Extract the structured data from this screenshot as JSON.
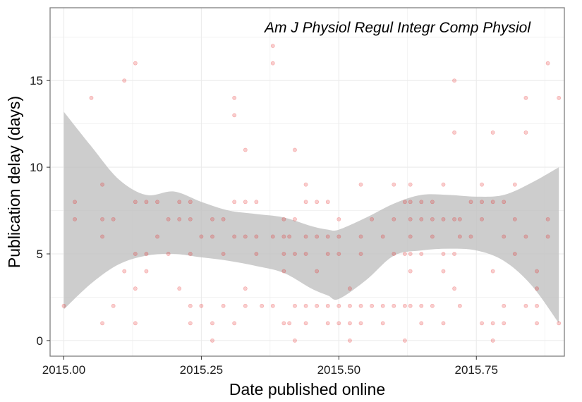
{
  "chart_data": {
    "type": "scatter",
    "title": "",
    "annotation": "Am J Physiol Regul Integr Comp Physiol",
    "xlabel": "Date published online",
    "ylabel": "Publication delay (days)",
    "xlim": [
      2014.975,
      2015.91
    ],
    "ylim": [
      -0.9,
      19.2
    ],
    "xticks": [
      2015.0,
      2015.25,
      2015.5,
      2015.75
    ],
    "xtick_labels": [
      "2015.00",
      "2015.25",
      "2015.50",
      "2015.75"
    ],
    "yticks": [
      0,
      5,
      10,
      15
    ],
    "ytick_labels": [
      "0",
      "5",
      "10",
      "15"
    ],
    "grid": true,
    "colors": {
      "points": "#e41a1c",
      "ribbon": "#bfbfbf",
      "grid": "#ebebeb",
      "border": "#7f7f7f"
    },
    "points": [
      [
        2015.0,
        2
      ],
      [
        2015.02,
        8
      ],
      [
        2015.02,
        7
      ],
      [
        2015.05,
        14
      ],
      [
        2015.07,
        9
      ],
      [
        2015.07,
        7
      ],
      [
        2015.07,
        6
      ],
      [
        2015.07,
        1
      ],
      [
        2015.09,
        7
      ],
      [
        2015.09,
        2
      ],
      [
        2015.11,
        15
      ],
      [
        2015.11,
        4
      ],
      [
        2015.13,
        16
      ],
      [
        2015.13,
        8
      ],
      [
        2015.13,
        5
      ],
      [
        2015.13,
        3
      ],
      [
        2015.13,
        1
      ],
      [
        2015.15,
        8
      ],
      [
        2015.15,
        5
      ],
      [
        2015.15,
        4
      ],
      [
        2015.17,
        8
      ],
      [
        2015.17,
        6
      ],
      [
        2015.19,
        7
      ],
      [
        2015.19,
        5
      ],
      [
        2015.21,
        8
      ],
      [
        2015.21,
        7
      ],
      [
        2015.21,
        3
      ],
      [
        2015.23,
        8
      ],
      [
        2015.23,
        7
      ],
      [
        2015.23,
        5
      ],
      [
        2015.23,
        2
      ],
      [
        2015.23,
        1
      ],
      [
        2015.25,
        6
      ],
      [
        2015.25,
        2
      ],
      [
        2015.27,
        7
      ],
      [
        2015.27,
        6
      ],
      [
        2015.27,
        1
      ],
      [
        2015.27,
        0
      ],
      [
        2015.29,
        7
      ],
      [
        2015.29,
        5
      ],
      [
        2015.29,
        2
      ],
      [
        2015.31,
        14
      ],
      [
        2015.31,
        13
      ],
      [
        2015.31,
        8
      ],
      [
        2015.31,
        6
      ],
      [
        2015.31,
        1
      ],
      [
        2015.33,
        11
      ],
      [
        2015.33,
        8
      ],
      [
        2015.33,
        6
      ],
      [
        2015.33,
        3
      ],
      [
        2015.33,
        2
      ],
      [
        2015.35,
        8
      ],
      [
        2015.35,
        6
      ],
      [
        2015.35,
        5
      ],
      [
        2015.36,
        2
      ],
      [
        2015.38,
        17
      ],
      [
        2015.38,
        16
      ],
      [
        2015.38,
        6
      ],
      [
        2015.38,
        2
      ],
      [
        2015.4,
        7
      ],
      [
        2015.4,
        6
      ],
      [
        2015.4,
        5
      ],
      [
        2015.4,
        4
      ],
      [
        2015.4,
        1
      ],
      [
        2015.41,
        6
      ],
      [
        2015.41,
        1
      ],
      [
        2015.42,
        11
      ],
      [
        2015.42,
        7
      ],
      [
        2015.42,
        5
      ],
      [
        2015.42,
        2
      ],
      [
        2015.42,
        0
      ],
      [
        2015.44,
        9
      ],
      [
        2015.44,
        8
      ],
      [
        2015.44,
        6
      ],
      [
        2015.44,
        5
      ],
      [
        2015.44,
        2
      ],
      [
        2015.44,
        1
      ],
      [
        2015.46,
        8
      ],
      [
        2015.46,
        6
      ],
      [
        2015.46,
        4
      ],
      [
        2015.46,
        2
      ],
      [
        2015.48,
        8
      ],
      [
        2015.48,
        6
      ],
      [
        2015.48,
        5
      ],
      [
        2015.48,
        2
      ],
      [
        2015.48,
        1
      ],
      [
        2015.5,
        7
      ],
      [
        2015.5,
        6
      ],
      [
        2015.5,
        5
      ],
      [
        2015.5,
        2
      ],
      [
        2015.5,
        1
      ],
      [
        2015.52,
        3
      ],
      [
        2015.52,
        2
      ],
      [
        2015.52,
        1
      ],
      [
        2015.52,
        0
      ],
      [
        2015.54,
        9
      ],
      [
        2015.54,
        6
      ],
      [
        2015.54,
        5
      ],
      [
        2015.54,
        2
      ],
      [
        2015.54,
        1
      ],
      [
        2015.56,
        7
      ],
      [
        2015.56,
        2
      ],
      [
        2015.58,
        6
      ],
      [
        2015.58,
        2
      ],
      [
        2015.58,
        1
      ],
      [
        2015.6,
        9
      ],
      [
        2015.6,
        7
      ],
      [
        2015.6,
        5
      ],
      [
        2015.6,
        2
      ],
      [
        2015.62,
        8
      ],
      [
        2015.62,
        5
      ],
      [
        2015.62,
        2
      ],
      [
        2015.62,
        0
      ],
      [
        2015.63,
        9
      ],
      [
        2015.63,
        8
      ],
      [
        2015.63,
        7
      ],
      [
        2015.63,
        6
      ],
      [
        2015.63,
        5
      ],
      [
        2015.63,
        4
      ],
      [
        2015.63,
        2
      ],
      [
        2015.65,
        8
      ],
      [
        2015.65,
        7
      ],
      [
        2015.65,
        5
      ],
      [
        2015.65,
        2
      ],
      [
        2015.65,
        1
      ],
      [
        2015.67,
        8
      ],
      [
        2015.67,
        7
      ],
      [
        2015.67,
        6
      ],
      [
        2015.67,
        2
      ],
      [
        2015.69,
        9
      ],
      [
        2015.69,
        7
      ],
      [
        2015.69,
        5
      ],
      [
        2015.69,
        4
      ],
      [
        2015.69,
        1
      ],
      [
        2015.71,
        15
      ],
      [
        2015.71,
        12
      ],
      [
        2015.71,
        7
      ],
      [
        2015.71,
        5
      ],
      [
        2015.71,
        3
      ],
      [
        2015.72,
        7
      ],
      [
        2015.72,
        6
      ],
      [
        2015.72,
        2
      ],
      [
        2015.74,
        8
      ],
      [
        2015.74,
        6
      ],
      [
        2015.76,
        9
      ],
      [
        2015.76,
        8
      ],
      [
        2015.76,
        7
      ],
      [
        2015.76,
        1
      ],
      [
        2015.78,
        12
      ],
      [
        2015.78,
        8
      ],
      [
        2015.78,
        4
      ],
      [
        2015.78,
        1
      ],
      [
        2015.78,
        0
      ],
      [
        2015.8,
        8
      ],
      [
        2015.8,
        6
      ],
      [
        2015.8,
        2
      ],
      [
        2015.8,
        1
      ],
      [
        2015.82,
        9
      ],
      [
        2015.82,
        7
      ],
      [
        2015.82,
        5
      ],
      [
        2015.84,
        14
      ],
      [
        2015.84,
        12
      ],
      [
        2015.84,
        6
      ],
      [
        2015.84,
        2
      ],
      [
        2015.86,
        4
      ],
      [
        2015.86,
        3
      ],
      [
        2015.86,
        2
      ],
      [
        2015.86,
        1
      ],
      [
        2015.88,
        16
      ],
      [
        2015.88,
        7
      ],
      [
        2015.88,
        6
      ],
      [
        2015.9,
        14
      ],
      [
        2015.9,
        1
      ]
    ],
    "smooth_band": {
      "x": [
        2015.0,
        2015.05,
        2015.1,
        2015.15,
        2015.2,
        2015.25,
        2015.3,
        2015.35,
        2015.4,
        2015.45,
        2015.48,
        2015.5,
        2015.55,
        2015.6,
        2015.65,
        2015.7,
        2015.75,
        2015.8,
        2015.85,
        2015.9
      ],
      "lower": [
        1.8,
        3.3,
        4.4,
        4.9,
        5.0,
        4.8,
        4.6,
        4.3,
        3.9,
        3.0,
        2.6,
        2.4,
        3.5,
        4.9,
        5.2,
        5.3,
        5.2,
        4.6,
        3.2,
        1.0
      ],
      "upper": [
        13.2,
        11.2,
        9.3,
        8.4,
        8.6,
        8.0,
        7.5,
        7.3,
        7.1,
        6.6,
        6.4,
        6.4,
        7.1,
        7.9,
        8.4,
        8.4,
        8.3,
        8.4,
        9.1,
        10.0
      ]
    }
  }
}
